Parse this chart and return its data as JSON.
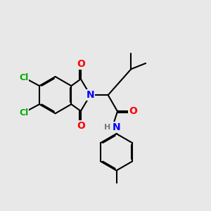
{
  "bg_color": "#e8e8e8",
  "bond_color": "#000000",
  "bond_width": 1.5,
  "dbo": 0.055,
  "atom_colors": {
    "O": "#ff0000",
    "N": "#0000ff",
    "Cl": "#00aa00",
    "H": "#777777",
    "C": "#000000"
  },
  "font_size": 9,
  "fig_size": [
    3.0,
    3.0
  ],
  "dpi": 100
}
